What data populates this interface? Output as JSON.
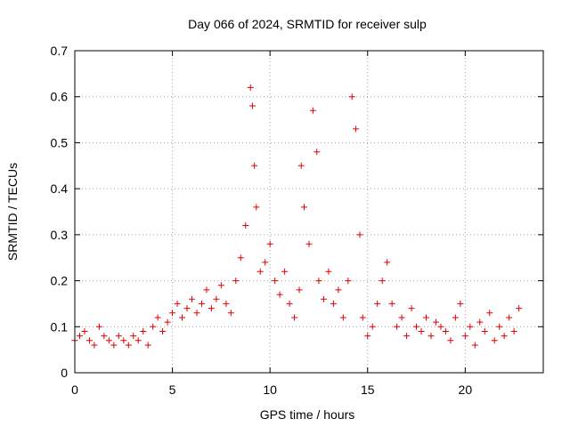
{
  "chart_data": {
    "type": "scatter",
    "title": "Day 066 of 2024, SRMTID for receiver sulp",
    "xlabel": "GPS time / hours",
    "ylabel": "SRMTID / TECUs",
    "xlim": [
      0,
      24
    ],
    "ylim": [
      0,
      0.7
    ],
    "xticks": [
      "0",
      "5",
      "10",
      "15",
      "20"
    ],
    "yticks": [
      "0",
      "0.1",
      "0.2",
      "0.3",
      "0.4",
      "0.5",
      "0.6",
      "0.7"
    ],
    "grid": true,
    "marker": "plus",
    "marker_color": "#e00000",
    "series": [
      {
        "name": "SRMTID",
        "x": [
          0.0,
          0.25,
          0.5,
          0.75,
          1.0,
          1.25,
          1.5,
          1.75,
          2.0,
          2.25,
          2.5,
          2.75,
          3.0,
          3.25,
          3.5,
          3.75,
          4.0,
          4.25,
          4.5,
          4.75,
          5.0,
          5.25,
          5.5,
          5.75,
          6.0,
          6.25,
          6.5,
          6.75,
          7.0,
          7.25,
          7.5,
          7.75,
          8.0,
          8.25,
          8.5,
          8.75,
          9.0,
          9.1,
          9.2,
          9.3,
          9.5,
          9.75,
          10.0,
          10.25,
          10.5,
          10.75,
          11.0,
          11.25,
          11.5,
          11.6,
          11.75,
          12.0,
          12.2,
          12.4,
          12.5,
          12.75,
          13.0,
          13.25,
          13.5,
          13.75,
          14.0,
          14.2,
          14.4,
          14.6,
          14.75,
          15.0,
          15.25,
          15.5,
          15.75,
          16.0,
          16.25,
          16.5,
          16.75,
          17.0,
          17.25,
          17.5,
          17.75,
          18.0,
          18.25,
          18.5,
          18.75,
          19.0,
          19.25,
          19.5,
          19.75,
          20.0,
          20.25,
          20.5,
          20.75,
          21.0,
          21.25,
          21.5,
          21.75,
          22.0,
          22.25,
          22.5,
          22.75
        ],
        "y": [
          0.07,
          0.08,
          0.09,
          0.07,
          0.06,
          0.1,
          0.08,
          0.07,
          0.06,
          0.08,
          0.07,
          0.06,
          0.08,
          0.07,
          0.09,
          0.06,
          0.1,
          0.12,
          0.09,
          0.11,
          0.13,
          0.15,
          0.12,
          0.14,
          0.16,
          0.13,
          0.15,
          0.18,
          0.14,
          0.16,
          0.19,
          0.15,
          0.13,
          0.2,
          0.25,
          0.32,
          0.62,
          0.58,
          0.45,
          0.36,
          0.22,
          0.24,
          0.28,
          0.2,
          0.17,
          0.22,
          0.15,
          0.12,
          0.18,
          0.45,
          0.36,
          0.28,
          0.57,
          0.48,
          0.2,
          0.16,
          0.22,
          0.15,
          0.18,
          0.12,
          0.2,
          0.6,
          0.53,
          0.3,
          0.12,
          0.08,
          0.1,
          0.15,
          0.2,
          0.24,
          0.15,
          0.1,
          0.12,
          0.08,
          0.14,
          0.1,
          0.09,
          0.12,
          0.08,
          0.11,
          0.1,
          0.09,
          0.07,
          0.12,
          0.15,
          0.08,
          0.1,
          0.06,
          0.11,
          0.09,
          0.13,
          0.07,
          0.1,
          0.08,
          0.12,
          0.09,
          0.14
        ]
      }
    ]
  }
}
